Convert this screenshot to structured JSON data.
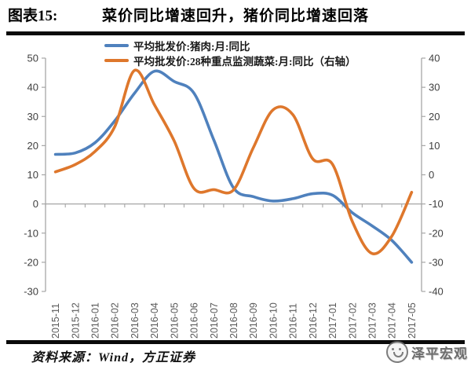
{
  "title": {
    "prefix": "图表15:",
    "text": "菜价同比增速回升，猪价同比增速回落"
  },
  "legend": [
    {
      "name": "平均批发价:猪肉:月:同比",
      "color": "#4F81BD"
    },
    {
      "name": "平均批发价:28种重点监测蔬菜:月:同比（右轴）",
      "color": "#DE772C"
    }
  ],
  "chart_data": {
    "type": "line",
    "title": "菜价同比增速回升，猪价同比增速回落",
    "categories": [
      "2015-11",
      "2015-12",
      "2016-01",
      "2016-02",
      "2016-03",
      "2016-04",
      "2016-05",
      "2016-06",
      "2016-07",
      "2016-08",
      "2016-09",
      "2016-10",
      "2016-11",
      "2016-12",
      "2017-01",
      "2017-02",
      "2017-03",
      "2017-04",
      "2017-05"
    ],
    "series": [
      {
        "name": "平均批发价:猪肉:月:同比",
        "axis": "left",
        "color": "#4F81BD",
        "values": [
          17,
          17.5,
          21,
          28.5,
          38,
          45.5,
          42,
          38,
          22,
          5.5,
          2.5,
          1,
          1.8,
          3.5,
          3,
          -3,
          -7.5,
          -12.5,
          -20
        ]
      },
      {
        "name": "平均批发价:28种重点监测蔬菜:月:同比（右轴）",
        "axis": "right",
        "color": "#DE772C",
        "values": [
          1,
          3.5,
          8,
          16.5,
          35.8,
          24,
          11.6,
          -4.7,
          -5.1,
          -5.2,
          9.3,
          22.3,
          20.6,
          5.5,
          3.6,
          -16,
          -27,
          -21,
          -6
        ]
      }
    ],
    "left_axis": {
      "min": -30,
      "max": 50,
      "step": 10,
      "ticks": [
        50,
        40,
        30,
        20,
        10,
        0,
        -10,
        -20,
        -30
      ]
    },
    "right_axis": {
      "min": -40,
      "max": 40,
      "step": 10,
      "ticks": [
        40,
        30,
        20,
        10,
        0,
        -10,
        -20,
        -30,
        -40
      ]
    },
    "grid": "zero-line-only",
    "legend_position": "top-left-inside",
    "colors": {
      "axis_line": "#A6A6A6",
      "y_tick_label": "#404040",
      "x_tick_label": "#595959"
    }
  },
  "source": {
    "text": "资料来源：Wind，方正证券"
  },
  "watermark": {
    "text": "泽平宏观"
  }
}
